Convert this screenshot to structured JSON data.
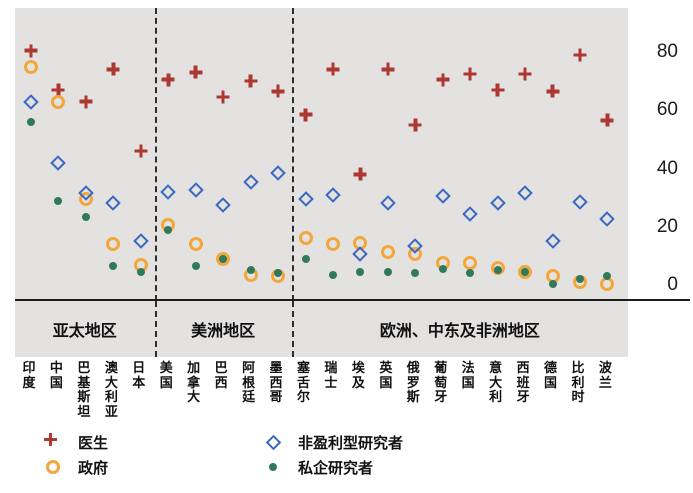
{
  "chart_data": {
    "type": "scatter",
    "title": "",
    "xlabel": "",
    "ylabel": "",
    "yticks": [
      80,
      60,
      40,
      20,
      0
    ],
    "ylim": [
      0,
      95
    ],
    "grid": false,
    "legend_position": "bottom",
    "marker_colors": {
      "red": "#ac3832",
      "orange": "#f2a73b",
      "blue": "#3a68c0",
      "green": "#31795a"
    },
    "plot_background": "#e4e2e1",
    "categories": [
      "印度",
      "中国",
      "巴基斯坦",
      "澳大利亚",
      "日本",
      "美国",
      "加拿大",
      "巴西",
      "阿根廷",
      "墨西哥",
      "塞舌尔",
      "瑞士",
      "埃及",
      "英国",
      "俄罗斯",
      "葡萄牙",
      "法国",
      "意大利",
      "西班牙",
      "德国",
      "比利时",
      "波兰"
    ],
    "regions": [
      {
        "label": "亚太地区",
        "count": 5
      },
      {
        "label": "美洲地区",
        "count": 5
      },
      {
        "label": "欧洲、中东及非洲地区",
        "count": 12
      }
    ],
    "series": [
      {
        "key": "doctors",
        "name": "医生",
        "marker": "plus",
        "color": "#ac3832",
        "values": [
          80.5,
          67,
          63,
          74,
          46,
          70.5,
          73,
          64.5,
          70,
          66.5,
          58.5,
          74,
          38,
          74,
          55,
          70.5,
          72.5,
          67,
          72.5,
          66.5,
          79,
          56.5
        ]
      },
      {
        "key": "government",
        "name": "政府",
        "marker": "circle",
        "color": "#f2a73b",
        "values": [
          75,
          63,
          29.5,
          14,
          7,
          20.5,
          14,
          9,
          3.5,
          3,
          16,
          14,
          14.5,
          11.5,
          10.5,
          7.5,
          7.5,
          6,
          4.5,
          3,
          1,
          0.5
        ]
      },
      {
        "key": "nonprofit-researchers",
        "name": "非盈利型研究者",
        "marker": "diamond",
        "color": "#3a68c0",
        "values": [
          63,
          42,
          31.5,
          28,
          15,
          32,
          32.5,
          27.5,
          35.5,
          38.5,
          29.5,
          31,
          10.5,
          28,
          13.5,
          30.5,
          24.5,
          28,
          31.5,
          15,
          28.5,
          22.5
        ]
      },
      {
        "key": "private-researchers",
        "name": "私企研究者",
        "marker": "dot",
        "color": "#31795a",
        "values": [
          56,
          29,
          23.5,
          6.5,
          4.5,
          19,
          6.5,
          9,
          5,
          4,
          9,
          3.5,
          4.5,
          4.5,
          4,
          5.5,
          4,
          5,
          4.5,
          0.5,
          2,
          3
        ]
      }
    ],
    "legend_columns": [
      [
        0,
        1
      ],
      [
        2,
        3
      ]
    ]
  }
}
